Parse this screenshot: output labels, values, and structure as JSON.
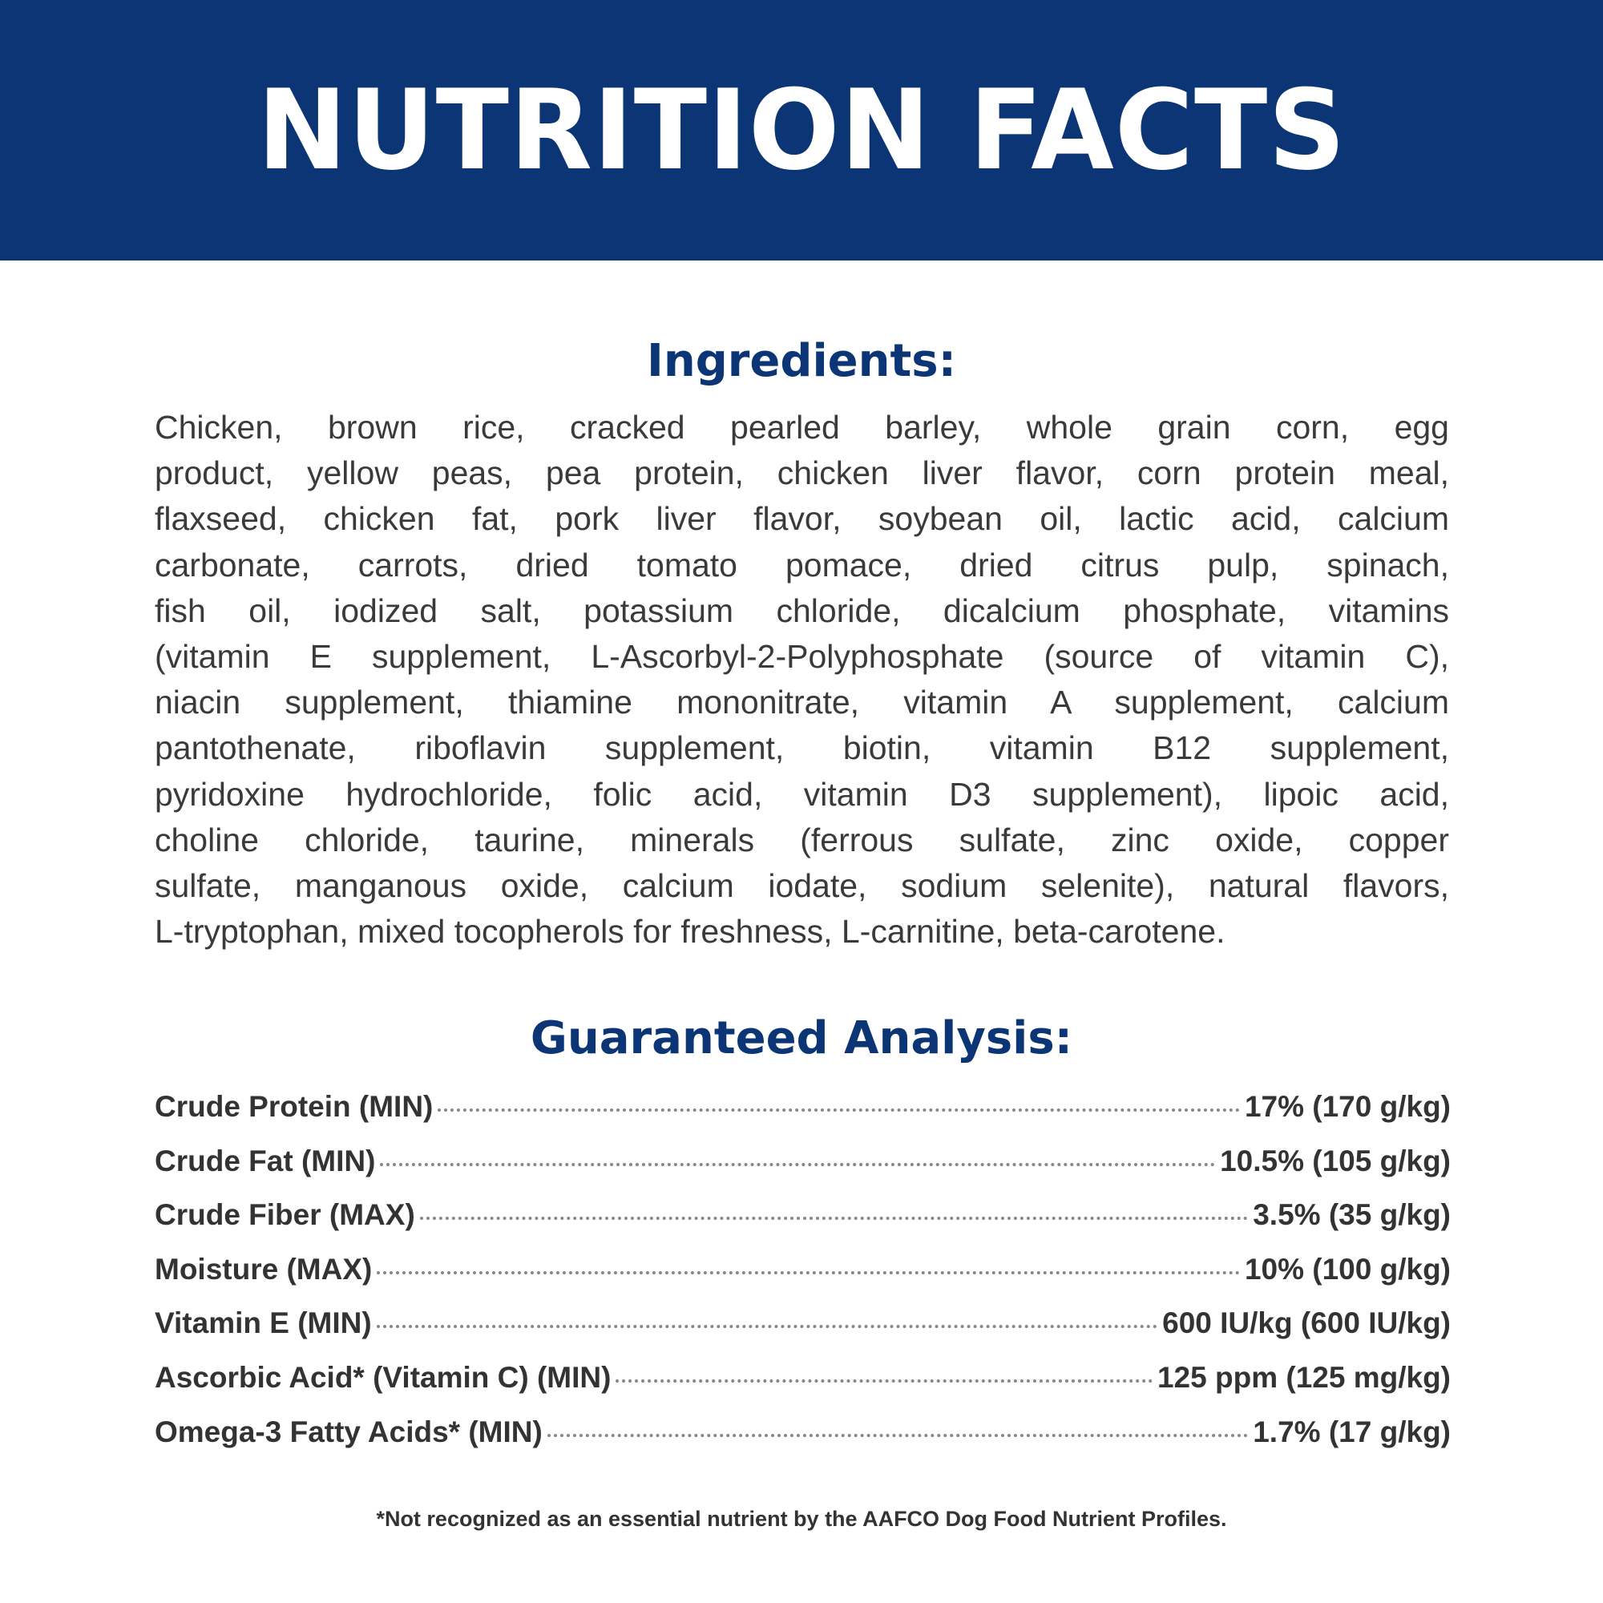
{
  "header": {
    "title": "NUTRITION FACTS",
    "color": "#0b3574"
  },
  "ingredients": {
    "heading": "Ingredients:",
    "lines": [
      "Chicken, brown rice, cracked pearled barley, whole grain corn, egg",
      "product, yellow peas, pea protein, chicken liver flavor, corn protein meal,",
      "flaxseed, chicken fat, pork liver flavor, soybean oil, lactic acid, calcium",
      "carbonate, carrots, dried tomato pomace, dried citrus pulp, spinach,",
      "fish oil, iodized salt, potassium chloride, dicalcium phosphate, vitamins",
      "(vitamin E supplement, L-Ascorbyl-2-Polyphosphate (source of vitamin C),",
      "niacin supplement, thiamine mononitrate, vitamin A supplement, calcium",
      "pantothenate, riboflavin supplement, biotin, vitamin B12 supplement,",
      "pyridoxine hydrochloride, folic acid, vitamin D3 supplement), lipoic acid,",
      "choline chloride, taurine, minerals (ferrous sulfate, zinc oxide, copper",
      "sulfate, manganous oxide, calcium iodate, sodium selenite), natural flavors,",
      "L-tryptophan, mixed tocopherols for freshness, L-carnitine, beta-carotene."
    ]
  },
  "analysis": {
    "heading": "Guaranteed Analysis:",
    "rows": [
      {
        "label": "Crude Protein (MIN)",
        "value": "17% (170 g/kg)"
      },
      {
        "label": "Crude Fat (MIN)",
        "value": "10.5% (105 g/kg)"
      },
      {
        "label": "Crude Fiber (MAX)",
        "value": "3.5% (35 g/kg)"
      },
      {
        "label": "Moisture (MAX)",
        "value": "10% (100 g/kg)"
      },
      {
        "label": "Vitamin E (MIN)",
        "value": "600 IU/kg (600 IU/kg)"
      },
      {
        "label": "Ascorbic Acid* (Vitamin C) (MIN)",
        "value": "125 ppm (125 mg/kg)"
      },
      {
        "label": "Omega-3 Fatty Acids* (MIN)",
        "value": "1.7% (17 g/kg)"
      }
    ]
  },
  "footnote": "*Not recognized as an essential nutrient by the AAFCO Dog Food Nutrient Profiles."
}
